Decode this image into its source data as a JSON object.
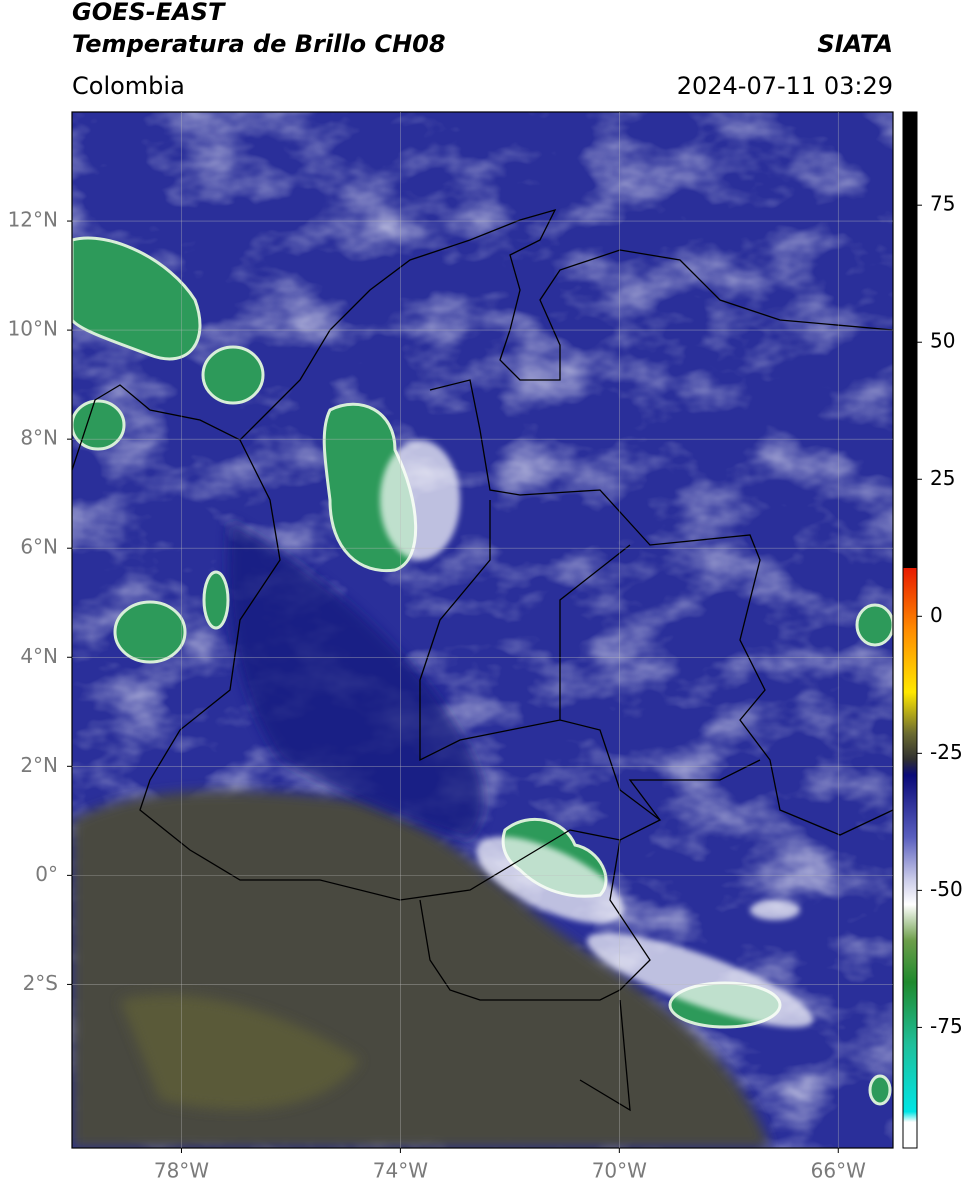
{
  "header": {
    "title": "GOES-EAST",
    "subtitle": "Temperatura de Brillo CH08",
    "source": "SIATA",
    "region": "Colombia",
    "datetime": "2024-07-11 03:29"
  },
  "map": {
    "xlim": [
      -80,
      -65
    ],
    "ylim": [
      -5,
      14
    ],
    "xticks": [
      {
        "value": -78,
        "label": "78°W"
      },
      {
        "value": -74,
        "label": "74°W"
      },
      {
        "value": -70,
        "label": "70°W"
      },
      {
        "value": -66,
        "label": "66°W"
      }
    ],
    "yticks": [
      {
        "value": 12,
        "label": "12°N"
      },
      {
        "value": 10,
        "label": "10°N"
      },
      {
        "value": 8,
        "label": "8°N"
      },
      {
        "value": 6,
        "label": "6°N"
      },
      {
        "value": 4,
        "label": "4°N"
      },
      {
        "value": 2,
        "label": "2°N"
      },
      {
        "value": 0,
        "label": "0°"
      },
      {
        "value": -2,
        "label": "2°S"
      }
    ],
    "grid": true
  },
  "colorbar": {
    "lim": [
      -97,
      92
    ],
    "ticks": [
      75,
      50,
      25,
      0,
      -25,
      -50,
      -75
    ]
  }
}
